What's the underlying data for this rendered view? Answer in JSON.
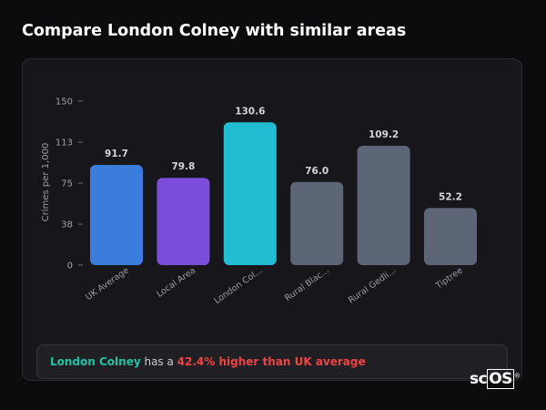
{
  "header": {
    "title": "Compare London Colney with similar areas"
  },
  "chart_data": {
    "type": "bar",
    "ylabel": "Crimes per 1,000",
    "ylim": [
      0,
      150
    ],
    "yticks": [
      "0",
      "38",
      "75",
      "113",
      "150"
    ],
    "ytick_values": [
      0,
      37.5,
      75,
      112.5,
      150
    ],
    "categories": [
      "UK Average",
      "Local Area",
      "London Col...",
      "Rural Blac...",
      "Rural Gedli...",
      "Tiptree"
    ],
    "values": [
      91.7,
      79.8,
      130.6,
      76.0,
      109.2,
      52.2
    ],
    "value_labels": [
      "91.7",
      "79.8",
      "130.6",
      "76.0",
      "109.2",
      "52.2"
    ],
    "colors": [
      "#3b7ddd",
      "#7c4ddb",
      "#22bcd3",
      "#5c6677",
      "#5c6677",
      "#5c6677"
    ],
    "grid": false,
    "legend": "none"
  },
  "summary": {
    "area": "London Colney",
    "connector": " has a ",
    "highlight": "42.4% higher than UK average"
  },
  "brand": {
    "logo_main": "sc",
    "logo_box": "OS",
    "logo_mark": "®"
  }
}
